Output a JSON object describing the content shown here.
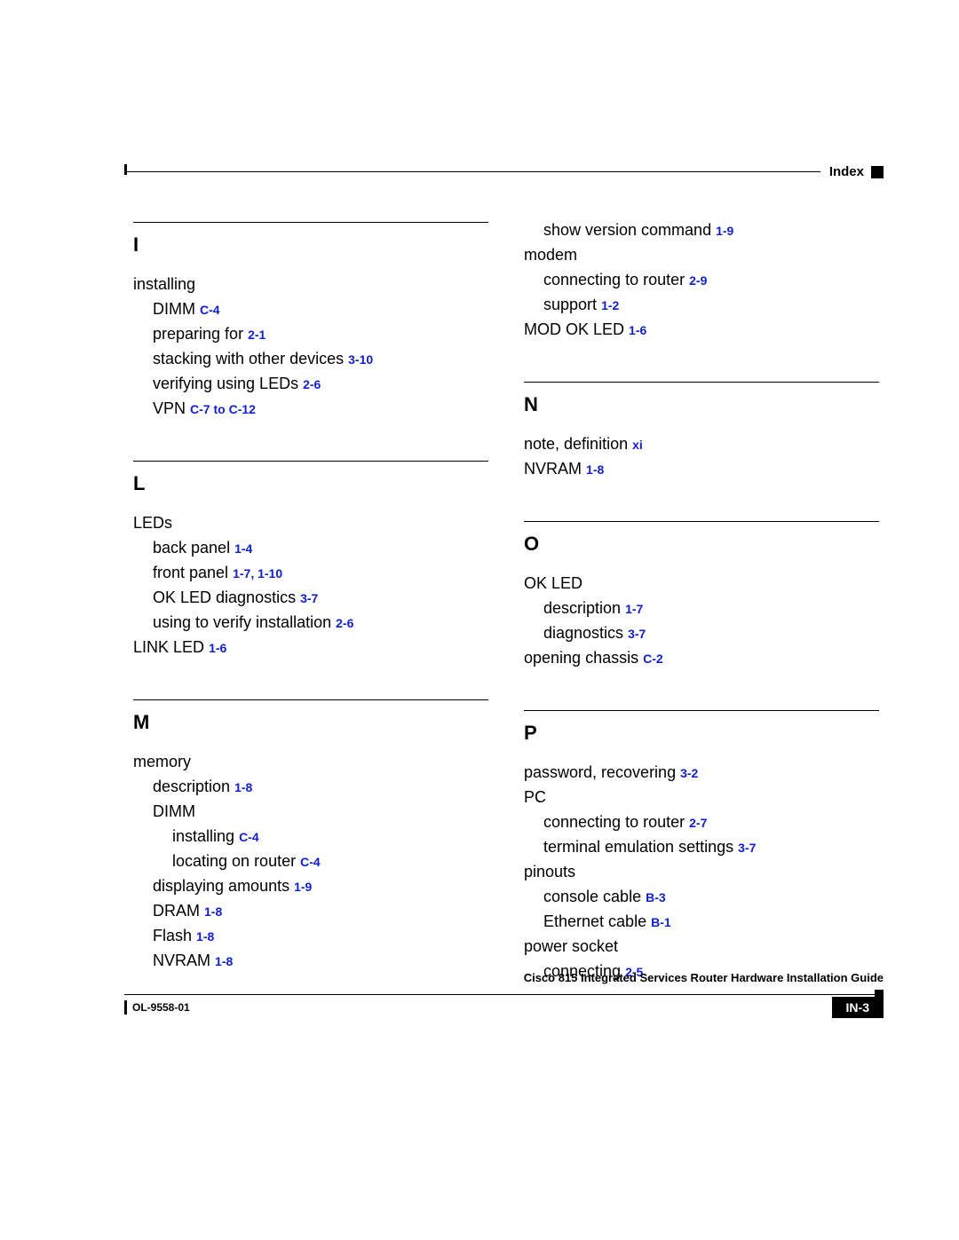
{
  "colors": {
    "link": "#1020d0",
    "text": "#000000",
    "bg": "#ffffff"
  },
  "fonts": {
    "body": "Arial",
    "base_size_pt": 14,
    "letter_size_pt": 17,
    "ref_size_pt": 11
  },
  "header": {
    "label": "Index"
  },
  "footer": {
    "doc_title": "Cisco 815 Integrated Services Router Hardware Installation Guide",
    "doc_number": "OL-9558-01",
    "page_number": "IN-3"
  },
  "index": {
    "left": [
      {
        "letter": "I",
        "items": [
          {
            "text": "installing",
            "ref": "",
            "level": 0
          },
          {
            "text": "DIMM",
            "ref": "C-4",
            "level": 1
          },
          {
            "text": "preparing for",
            "ref": "2-1",
            "level": 1
          },
          {
            "text": "stacking with other devices",
            "ref": "3-10",
            "level": 1
          },
          {
            "text": "verifying using LEDs",
            "ref": "2-6",
            "level": 1
          },
          {
            "text": "VPN",
            "ref": "C-7 to C-12",
            "level": 1
          }
        ]
      },
      {
        "letter": "L",
        "items": [
          {
            "text": "LEDs",
            "ref": "",
            "level": 0
          },
          {
            "text": "back panel",
            "ref": "1-4",
            "level": 1
          },
          {
            "text": "front panel",
            "ref": "1-7, 1-10",
            "level": 1
          },
          {
            "text": "OK LED diagnostics",
            "ref": "3-7",
            "level": 1
          },
          {
            "text": "using to verify installation",
            "ref": "2-6",
            "level": 1
          },
          {
            "text": "LINK LED",
            "ref": "1-6",
            "level": 0
          }
        ]
      },
      {
        "letter": "M",
        "items": [
          {
            "text": "memory",
            "ref": "",
            "level": 0
          },
          {
            "text": "description",
            "ref": "1-8",
            "level": 1
          },
          {
            "text": "DIMM",
            "ref": "",
            "level": 1
          },
          {
            "text": "installing",
            "ref": "C-4",
            "level": 2
          },
          {
            "text": "locating on router",
            "ref": "C-4",
            "level": 2
          },
          {
            "text": "displaying amounts",
            "ref": "1-9",
            "level": 1
          },
          {
            "text": "DRAM",
            "ref": "1-8",
            "level": 1
          },
          {
            "text": "Flash",
            "ref": "1-8",
            "level": 1
          },
          {
            "text": "NVRAM",
            "ref": "1-8",
            "level": 1
          }
        ]
      }
    ],
    "right_pre": [
      {
        "text": "show version command",
        "ref": "1-9",
        "level": 1
      },
      {
        "text": "modem",
        "ref": "",
        "level": 0
      },
      {
        "text": "connecting to router",
        "ref": "2-9",
        "level": 1
      },
      {
        "text": "support",
        "ref": "1-2",
        "level": 1
      },
      {
        "text": "MOD OK LED",
        "ref": "1-6",
        "level": 0
      }
    ],
    "right": [
      {
        "letter": "N",
        "items": [
          {
            "text": "note, definition",
            "ref": "xi",
            "level": 0
          },
          {
            "text": "NVRAM",
            "ref": "1-8",
            "level": 0
          }
        ]
      },
      {
        "letter": "O",
        "items": [
          {
            "text": "OK LED",
            "ref": "",
            "level": 0
          },
          {
            "text": "description",
            "ref": "1-7",
            "level": 1
          },
          {
            "text": "diagnostics",
            "ref": "3-7",
            "level": 1
          },
          {
            "text": "opening chassis",
            "ref": "C-2",
            "level": 0
          }
        ]
      },
      {
        "letter": "P",
        "items": [
          {
            "text": "password, recovering",
            "ref": "3-2",
            "level": 0
          },
          {
            "text": "PC",
            "ref": "",
            "level": 0
          },
          {
            "text": "connecting to router",
            "ref": "2-7",
            "level": 1
          },
          {
            "text": "terminal emulation settings",
            "ref": "3-7",
            "level": 1
          },
          {
            "text": "pinouts",
            "ref": "",
            "level": 0
          },
          {
            "text": "console cable",
            "ref": "B-3",
            "level": 1
          },
          {
            "text": "Ethernet cable",
            "ref": "B-1",
            "level": 1
          },
          {
            "text": "power socket",
            "ref": "",
            "level": 0
          },
          {
            "text": "connecting",
            "ref": "2-5",
            "level": 1
          }
        ]
      }
    ]
  }
}
